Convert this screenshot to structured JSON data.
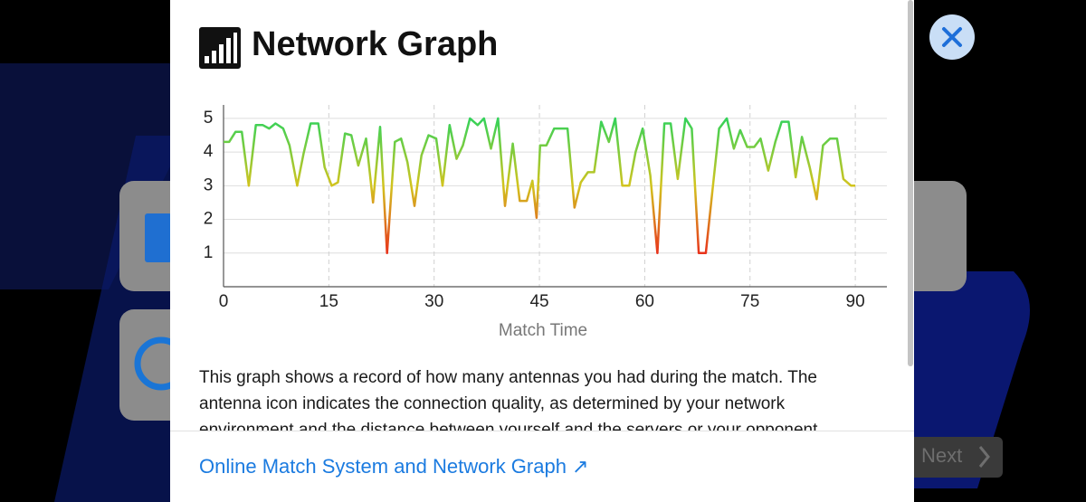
{
  "title": "Network Graph",
  "description": "This graph shows a record of how many antennas you had during the match. The antenna icon indicates the connection quality, as determined by your network environment and the distance between yourself and the servers or your opponent.",
  "link": "Online Match System and Network Graph ↗",
  "next_button": "Next",
  "chart_data": {
    "type": "line",
    "xlabel": "Match Time",
    "x": [
      0,
      0.8,
      1.7,
      2.6,
      3.6,
      4.6,
      5.6,
      6.5,
      7.4,
      8.5,
      9.4,
      10.5,
      11.4,
      12.4,
      13.5,
      14.4,
      15.4,
      16.3,
      17.3,
      18.2,
      19.2,
      20.3,
      21.3,
      22.3,
      23.3,
      24.4,
      25.3,
      26.2,
      27.2,
      28.2,
      29.2,
      30.3,
      31.2,
      32.2,
      33.2,
      34.1,
      35.1,
      36.2,
      37.1,
      38.1,
      39.1,
      40.1,
      41.2,
      42.2,
      43.2,
      44.0,
      44.6,
      45.1,
      46.0,
      47.1,
      48.1,
      49.0,
      50.0,
      50.9,
      51.9,
      52.8,
      53.8,
      54.9,
      55.8,
      56.8,
      57.8,
      58.7,
      59.7,
      60.8,
      61.8,
      62.8,
      63.7,
      64.7,
      65.8,
      66.7,
      67.7,
      68.7,
      69.7,
      70.6,
      71.7,
      72.7,
      73.6,
      74.6,
      75.6,
      76.5,
      77.6,
      78.6,
      79.5,
      80.5,
      81.5,
      82.4,
      83.5,
      84.5,
      85.4,
      86.4,
      87.4,
      88.3,
      89.4,
      90.0
    ],
    "series": [
      {
        "gradient": [
          "#e8341c",
          "#d2c41e",
          "#33d25a"
        ],
        "values": [
          4.3,
          4.3,
          4.6,
          4.6,
          3.0,
          4.8,
          4.8,
          4.7,
          4.85,
          4.7,
          4.2,
          3.0,
          3.95,
          4.85,
          4.85,
          3.55,
          3.0,
          3.1,
          4.55,
          4.5,
          3.6,
          4.4,
          2.5,
          4.75,
          1.0,
          4.3,
          4.4,
          3.7,
          2.4,
          3.9,
          4.5,
          4.4,
          3.0,
          4.8,
          3.8,
          4.2,
          5.0,
          4.8,
          5.0,
          4.1,
          5.0,
          2.4,
          4.25,
          2.55,
          2.55,
          3.15,
          2.05,
          4.2,
          4.2,
          4.7,
          4.7,
          4.7,
          2.35,
          3.1,
          3.4,
          3.4,
          4.9,
          4.3,
          5.0,
          3.0,
          3.0,
          4.0,
          4.7,
          3.3,
          1.0,
          4.85,
          4.85,
          3.2,
          5.0,
          4.7,
          1.0,
          1.0,
          2.95,
          4.7,
          5.0,
          4.1,
          4.65,
          4.15,
          4.15,
          4.4,
          3.45,
          4.3,
          4.9,
          4.9,
          3.25,
          4.45,
          3.55,
          2.6,
          4.2,
          4.4,
          4.4,
          3.2,
          3.0,
          3.0
        ]
      }
    ],
    "xlim": [
      0,
      94.5
    ],
    "ylim": [
      0,
      5.4
    ],
    "xticks": [
      0,
      15,
      30,
      45,
      60,
      75,
      90
    ],
    "yticks": [
      1,
      2,
      3,
      4,
      5
    ],
    "grid": true
  }
}
